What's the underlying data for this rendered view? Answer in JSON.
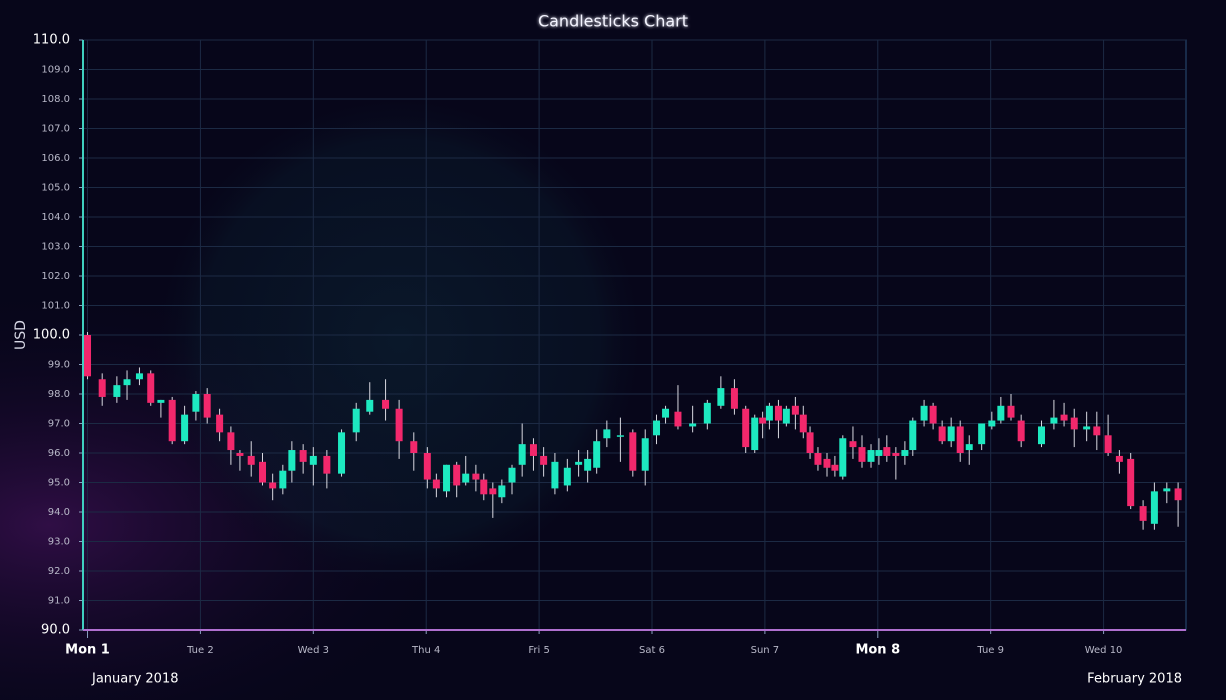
{
  "chart_data": {
    "type": "candlestick",
    "title": "Candlesticks Chart",
    "y_label": "USD",
    "x_period_labels": [
      "January 2018",
      "February 2018"
    ],
    "up_color": "#1de9c0",
    "down_color": "#f2286c",
    "grid": true,
    "xlim": [
      0.96,
      10.73
    ],
    "ylim": [
      90,
      110
    ],
    "xticks_major": [
      {
        "value": 1,
        "label": "Mon 1"
      },
      {
        "value": 8,
        "label": "Mon 8"
      }
    ],
    "xticks": [
      {
        "value": 2,
        "label": "Tue 2"
      },
      {
        "value": 3,
        "label": "Wed 3"
      },
      {
        "value": 4,
        "label": "Thu 4"
      },
      {
        "value": 5,
        "label": "Fri 5"
      },
      {
        "value": 6,
        "label": "Sat 6"
      },
      {
        "value": 7,
        "label": "Sun 7"
      },
      {
        "value": 9,
        "label": "Tue 9"
      },
      {
        "value": 10,
        "label": "Wed 10"
      }
    ],
    "yticks": [
      {
        "value": 90,
        "label": "90.0"
      },
      {
        "value": 91,
        "label": "91.0"
      },
      {
        "value": 92,
        "label": "92.0"
      },
      {
        "value": 93,
        "label": "93.0"
      },
      {
        "value": 94,
        "label": "94.0"
      },
      {
        "value": 95,
        "label": "95.0"
      },
      {
        "value": 96,
        "label": "96.0"
      },
      {
        "value": 97,
        "label": "97.0"
      },
      {
        "value": 98,
        "label": "98.0"
      },
      {
        "value": 99,
        "label": "99.0"
      },
      {
        "value": 100,
        "label": "100.0"
      },
      {
        "value": 101,
        "label": "101.0"
      },
      {
        "value": 102,
        "label": "102.0"
      },
      {
        "value": 103,
        "label": "103.0"
      },
      {
        "value": 104,
        "label": "104.0"
      },
      {
        "value": 105,
        "label": "105.0"
      },
      {
        "value": 106,
        "label": "106.0"
      },
      {
        "value": 107,
        "label": "107.0"
      },
      {
        "value": 108,
        "label": "108.0"
      },
      {
        "value": 109,
        "label": "109.0"
      },
      {
        "value": 110,
        "label": "110.0"
      }
    ],
    "x": [
      1.0,
      1.13,
      1.26,
      1.35,
      1.46,
      1.56,
      1.65,
      1.75,
      1.86,
      1.96,
      2.06,
      2.17,
      2.27,
      2.35,
      2.45,
      2.55,
      2.64,
      2.73,
      2.81,
      2.91,
      3.0,
      3.12,
      3.25,
      3.38,
      3.5,
      3.64,
      3.76,
      3.89,
      4.01,
      4.09,
      4.18,
      4.27,
      4.35,
      4.44,
      4.51,
      4.59,
      4.67,
      4.76,
      4.85,
      4.95,
      5.04,
      5.14,
      5.25,
      5.35,
      5.43,
      5.51,
      5.6,
      5.72,
      5.83,
      5.94,
      6.04,
      6.12,
      6.23,
      6.36,
      6.49,
      6.61,
      6.73,
      6.83,
      6.91,
      6.98,
      7.04,
      7.12,
      7.19,
      7.27,
      7.34,
      7.4,
      7.47,
      7.55,
      7.62,
      7.69,
      7.78,
      7.86,
      7.94,
      8.01,
      8.08,
      8.16,
      8.24,
      8.31,
      8.41,
      8.49,
      8.57,
      8.65,
      8.73,
      8.81,
      8.92,
      9.01,
      9.09,
      9.18,
      9.27,
      9.45,
      9.56,
      9.65,
      9.74,
      9.85,
      9.94,
      10.04,
      10.14,
      10.24,
      10.35,
      10.45,
      10.56,
      10.66
    ],
    "open": [
      100.0,
      98.5,
      97.9,
      98.3,
      98.5,
      98.7,
      97.7,
      97.8,
      96.4,
      97.4,
      98.0,
      97.3,
      96.7,
      96.0,
      95.9,
      95.7,
      95.0,
      94.8,
      95.4,
      96.1,
      95.6,
      95.9,
      95.3,
      96.7,
      97.4,
      97.8,
      97.5,
      96.4,
      96.0,
      95.1,
      94.7,
      95.6,
      95.0,
      95.3,
      95.1,
      94.8,
      94.5,
      95.0,
      95.6,
      96.3,
      95.9,
      94.8,
      94.9,
      95.6,
      95.4,
      95.5,
      96.5,
      96.6,
      96.7,
      95.4,
      96.6,
      97.2,
      97.4,
      96.9,
      97.0,
      97.6,
      98.2,
      97.5,
      96.1,
      97.2,
      97.1,
      97.6,
      97.0,
      97.6,
      97.3,
      96.7,
      96.0,
      95.8,
      95.6,
      95.2,
      96.4,
      96.2,
      95.7,
      95.9,
      96.2,
      96.0,
      95.9,
      96.1,
      97.1,
      97.6,
      96.9,
      96.4,
      96.9,
      96.1,
      96.3,
      96.9,
      97.1,
      97.6,
      97.1,
      96.3,
      97.0,
      97.3,
      97.2,
      96.8,
      96.9,
      96.6,
      95.9,
      95.8,
      94.2,
      93.6,
      94.7,
      94.8
    ],
    "high": [
      100.1,
      98.7,
      98.6,
      98.8,
      98.9,
      98.8,
      97.8,
      97.9,
      97.6,
      98.1,
      98.2,
      97.5,
      96.9,
      96.1,
      96.4,
      96.0,
      95.3,
      95.6,
      96.4,
      96.3,
      96.2,
      96.1,
      96.8,
      97.7,
      98.4,
      98.5,
      97.8,
      96.7,
      96.2,
      95.3,
      95.6,
      95.7,
      95.9,
      95.6,
      95.3,
      95.0,
      95.1,
      95.6,
      97.0,
      96.5,
      96.2,
      96.0,
      95.8,
      96.1,
      96.1,
      96.8,
      97.1,
      97.2,
      96.8,
      96.8,
      97.3,
      97.6,
      98.3,
      97.6,
      97.8,
      98.6,
      98.5,
      97.6,
      97.3,
      97.4,
      97.7,
      97.8,
      97.6,
      97.9,
      97.6,
      96.9,
      96.2,
      96.0,
      95.9,
      96.6,
      96.9,
      96.6,
      96.3,
      96.5,
      96.6,
      96.2,
      96.4,
      97.2,
      97.8,
      97.7,
      97.1,
      97.2,
      97.1,
      96.6,
      97.0,
      97.4,
      97.9,
      98.0,
      97.3,
      97.1,
      97.8,
      97.7,
      97.5,
      97.4,
      97.4,
      97.3,
      96.1,
      96.0,
      94.4,
      95.0,
      95.0,
      95.0
    ],
    "low": [
      98.5,
      97.6,
      97.7,
      97.8,
      98.3,
      97.6,
      97.2,
      96.3,
      96.3,
      97.1,
      97.0,
      96.4,
      95.6,
      95.4,
      95.2,
      94.9,
      94.4,
      94.6,
      95.0,
      95.3,
      94.9,
      94.8,
      95.2,
      96.4,
      97.3,
      97.1,
      95.8,
      95.4,
      94.8,
      94.5,
      94.5,
      94.5,
      94.9,
      94.7,
      94.4,
      93.8,
      94.3,
      94.6,
      95.2,
      95.4,
      95.2,
      94.6,
      94.7,
      95.2,
      95.0,
      95.3,
      96.2,
      95.7,
      95.2,
      94.9,
      96.3,
      97.0,
      96.8,
      96.7,
      96.8,
      97.5,
      97.3,
      96.0,
      96.0,
      96.5,
      96.8,
      96.5,
      96.9,
      96.8,
      96.5,
      95.8,
      95.4,
      95.2,
      95.2,
      95.1,
      95.8,
      95.5,
      95.5,
      95.6,
      95.7,
      95.1,
      95.6,
      95.9,
      96.9,
      96.8,
      96.3,
      96.2,
      95.7,
      95.6,
      96.1,
      96.8,
      97.0,
      97.1,
      96.2,
      96.2,
      96.8,
      96.9,
      96.2,
      96.4,
      96.1,
      95.9,
      95.3,
      94.1,
      93.4,
      93.4,
      94.3,
      93.5
    ],
    "close": [
      98.6,
      97.9,
      98.3,
      98.5,
      98.7,
      97.7,
      97.8,
      96.4,
      97.3,
      98.0,
      97.2,
      96.7,
      96.1,
      95.9,
      95.6,
      95.0,
      94.8,
      95.4,
      96.1,
      95.7,
      95.9,
      95.3,
      96.7,
      97.5,
      97.8,
      97.5,
      96.4,
      96.0,
      95.1,
      94.8,
      95.6,
      94.9,
      95.3,
      95.1,
      94.6,
      94.6,
      94.9,
      95.5,
      96.3,
      95.9,
      95.6,
      95.7,
      95.5,
      95.7,
      95.8,
      96.4,
      96.8,
      96.6,
      95.4,
      96.5,
      97.1,
      97.5,
      96.9,
      97.0,
      97.7,
      98.2,
      97.5,
      96.2,
      97.2,
      97.0,
      97.6,
      97.1,
      97.5,
      97.3,
      96.7,
      96.0,
      95.6,
      95.5,
      95.4,
      96.5,
      96.2,
      95.7,
      96.1,
      96.1,
      95.9,
      95.9,
      96.1,
      97.1,
      97.6,
      97.0,
      96.4,
      96.9,
      96.0,
      96.3,
      97.0,
      97.1,
      97.6,
      97.2,
      96.4,
      96.9,
      97.2,
      97.1,
      96.8,
      96.9,
      96.6,
      96.0,
      95.7,
      94.2,
      93.7,
      94.7,
      94.8,
      94.4
    ]
  }
}
